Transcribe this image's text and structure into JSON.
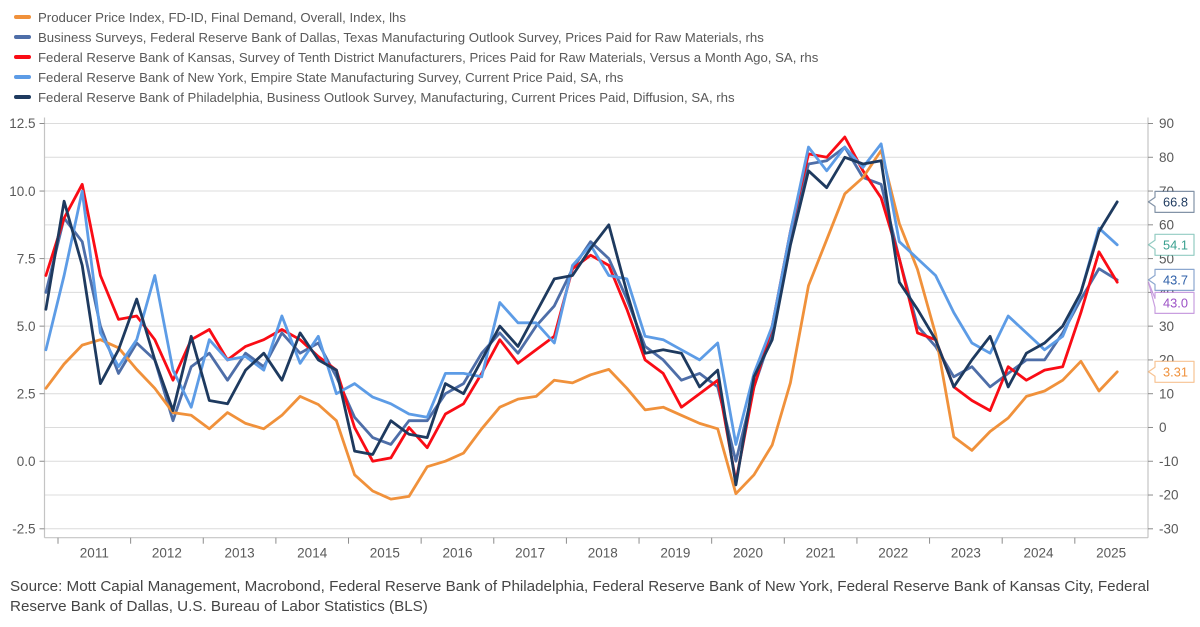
{
  "source_text": "Source: Mott Capial Management, Macrobond, Federal Reserve Bank of Philadelphia, Federal Reserve Bank of New York, Federal Reserve Bank of Kansas City, Federal Reserve Bank of Dallas, U.S. Bureau of Labor Statistics (BLS)",
  "chart_data": {
    "type": "line",
    "title": "",
    "x_start": "2010-11",
    "x_interval_months": 3,
    "x_end": "2025-08",
    "x_tick_years": [
      2011,
      2012,
      2013,
      2014,
      2015,
      2016,
      2017,
      2018,
      2019,
      2020,
      2021,
      2022,
      2023,
      2024,
      2025
    ],
    "grid": true,
    "legend_position": "top-left",
    "left_axis": {
      "side": "lhs",
      "range": [
        -2.5,
        12.5
      ],
      "ticks": [
        12.5,
        10.0,
        7.5,
        5.0,
        2.5,
        0.0,
        -2.5
      ],
      "tick_labels": [
        "12.5",
        "10.0",
        "7.5",
        "5.0",
        "2.5",
        "0.0",
        "-2.5"
      ]
    },
    "right_axis": {
      "side": "rhs",
      "range": [
        -30,
        90
      ],
      "ticks": [
        90,
        80,
        70,
        60,
        50,
        40,
        30,
        20,
        10,
        0,
        -10,
        -20,
        -30
      ],
      "tick_labels": [
        "90",
        "80",
        "70",
        "60",
        "50",
        "40",
        "30",
        "20",
        "10",
        "0",
        "-10",
        "-20",
        "-30"
      ]
    },
    "series": [
      {
        "name": "Producer Price Index, FD-ID, Final Demand, Overall, Index, lhs",
        "axis": "lhs",
        "color": "#F0913B",
        "end_label": "3.31",
        "end_label_color": "#F0913B",
        "end_value": 3.31,
        "values": [
          2.7,
          3.6,
          4.3,
          4.5,
          4.2,
          3.4,
          2.7,
          1.8,
          1.7,
          1.2,
          1.8,
          1.4,
          1.2,
          1.7,
          2.4,
          2.1,
          1.5,
          -0.5,
          -1.1,
          -1.4,
          -1.3,
          -0.2,
          0.0,
          0.3,
          1.2,
          2.0,
          2.3,
          2.4,
          3.0,
          2.9,
          3.2,
          3.4,
          2.7,
          1.9,
          2.0,
          1.7,
          1.4,
          1.2,
          -1.2,
          -0.5,
          0.6,
          2.9,
          6.5,
          8.2,
          9.9,
          10.5,
          11.5,
          8.8,
          7.1,
          4.7,
          0.9,
          0.4,
          1.1,
          1.6,
          2.4,
          2.6,
          3.0,
          3.7,
          2.6,
          3.31
        ]
      },
      {
        "name": "Business Surveys, Federal Reserve Bank of Dallas, Texas Manufacturing Outlook Survey, Prices Paid for Raw Materials, rhs",
        "axis": "rhs",
        "color": "#4E6EA8",
        "end_label": "43.7",
        "end_label_color": "#2E5FA8",
        "end_value": 43.7,
        "values": [
          40,
          62,
          55,
          30,
          16,
          25,
          20,
          2,
          18,
          22,
          14,
          22,
          18,
          28,
          22,
          25,
          15,
          3,
          -3,
          -5,
          2,
          2,
          10,
          13,
          22,
          28,
          22,
          30,
          36,
          47,
          55,
          50,
          38,
          24,
          20,
          14,
          16,
          12,
          -10,
          12,
          28,
          57,
          78,
          79,
          83,
          74,
          72,
          50,
          30,
          24,
          15,
          18,
          12,
          16,
          20,
          20,
          28,
          38,
          47,
          43.7
        ]
      },
      {
        "name": "Federal Reserve Bank of Kansas, Survey of Tenth District Manufacturers, Prices Paid for Raw Materials, Versus a Month Ago, SA, rhs",
        "axis": "rhs",
        "color": "#FA0C15",
        "end_label": "43.0",
        "end_label_color": "#9C51C6",
        "end_value": 43.0,
        "values": [
          45,
          62,
          72,
          45,
          32,
          33,
          26,
          14,
          26,
          29,
          20,
          24,
          26,
          29,
          26,
          21,
          17,
          0,
          -10,
          -9,
          0,
          -6,
          4,
          7,
          16,
          26,
          19,
          23,
          27,
          47,
          51,
          48,
          35,
          20,
          16,
          6,
          10,
          14,
          -16,
          12,
          30,
          58,
          81,
          80,
          86,
          76,
          68,
          50,
          28,
          26,
          12,
          8,
          5,
          18,
          14,
          17,
          18,
          34,
          52,
          43.0
        ]
      },
      {
        "name": "Federal Reserve Bank of New York, Empire State Manufacturing Survey, Current Price Paid, SA, rhs",
        "axis": "rhs",
        "color": "#5D9CE6",
        "end_label": "54.1",
        "end_label_color": "#3AA08F",
        "end_value": 54.1,
        "values": [
          23,
          45,
          70,
          28,
          18,
          26,
          45,
          17,
          6,
          26,
          20,
          21,
          17,
          33,
          19,
          27,
          10,
          13,
          9,
          7,
          4,
          3,
          16,
          16,
          15,
          37,
          31,
          31,
          25,
          48,
          54,
          45,
          44,
          27,
          26,
          23,
          20,
          25,
          -5,
          16,
          30,
          58,
          83,
          76,
          83,
          77,
          84,
          55,
          50,
          45,
          34,
          25,
          22,
          33,
          28,
          23,
          27,
          40,
          59,
          54.1
        ]
      },
      {
        "name": "Federal Reserve Bank of Philadelphia, Business Outlook Survey, Manufacturing, Current Prices Paid, Diffusion, SA, rhs",
        "axis": "rhs",
        "color": "#1E3A5F",
        "end_label": "66.8",
        "end_label_color": "#1E3A5F",
        "end_value": 66.8,
        "values": [
          35,
          67,
          48,
          13,
          23,
          38,
          20,
          5,
          27,
          8,
          7,
          17,
          22,
          14,
          28,
          20,
          17,
          -7,
          -8,
          2,
          -2,
          -3,
          13,
          10,
          20,
          30,
          24,
          34,
          44,
          45,
          53,
          60,
          40,
          22,
          23,
          22,
          12,
          17,
          -17,
          15,
          26,
          54,
          76,
          71,
          80,
          78,
          79,
          43,
          35,
          26,
          12,
          20,
          27,
          12,
          22,
          25,
          30,
          40,
          58,
          66.8
        ]
      }
    ],
    "style": {
      "gridline_color": "#DCDCDC",
      "spine_color": "#C4C4C4",
      "tick_color": "#8C8C8C",
      "axis_label_color": "#595959",
      "line_width": 2.8
    }
  }
}
